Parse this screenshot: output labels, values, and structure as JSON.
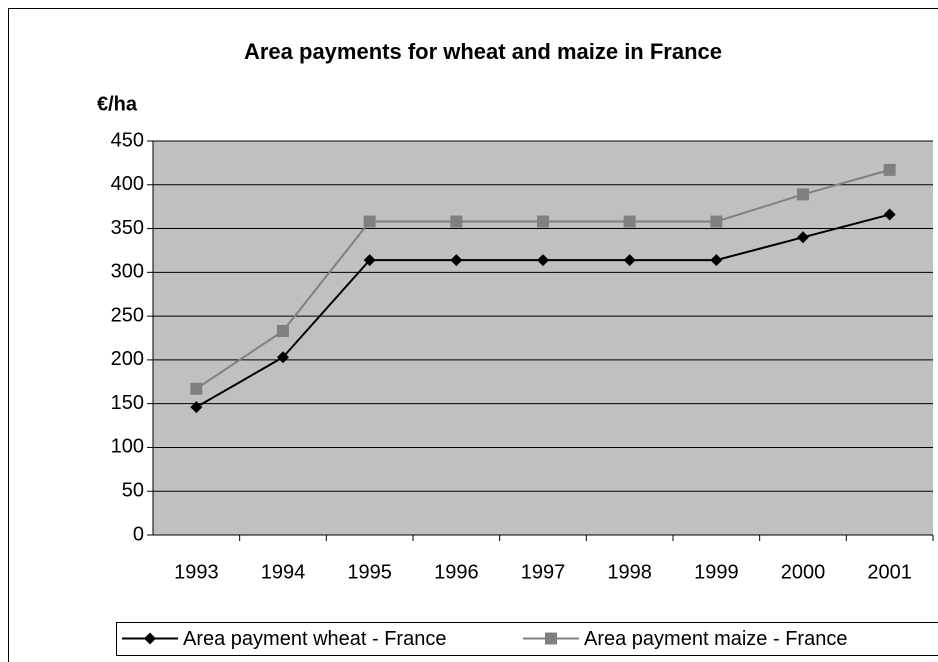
{
  "chart_data": {
    "type": "line",
    "title": "Area payments for wheat and maize in France",
    "y_label": "€/ha",
    "categories": [
      "1993",
      "1994",
      "1995",
      "1996",
      "1997",
      "1998",
      "1999",
      "2000",
      "2001"
    ],
    "series": [
      {
        "name": "Area payment wheat - France",
        "color": "#000000",
        "marker": "diamond",
        "values": [
          146,
          203,
          314,
          314,
          314,
          314,
          314,
          340,
          366
        ]
      },
      {
        "name": "Area payment maize - France",
        "color": "#808080",
        "marker": "square",
        "values": [
          167,
          233,
          358,
          358,
          358,
          358,
          358,
          389,
          417
        ]
      }
    ],
    "ylim": [
      0,
      450
    ],
    "yticks": [
      0,
      50,
      100,
      150,
      200,
      250,
      300,
      350,
      400,
      450
    ],
    "grid": true,
    "plot_background": "#c0c0c0",
    "legend": "bottom"
  }
}
